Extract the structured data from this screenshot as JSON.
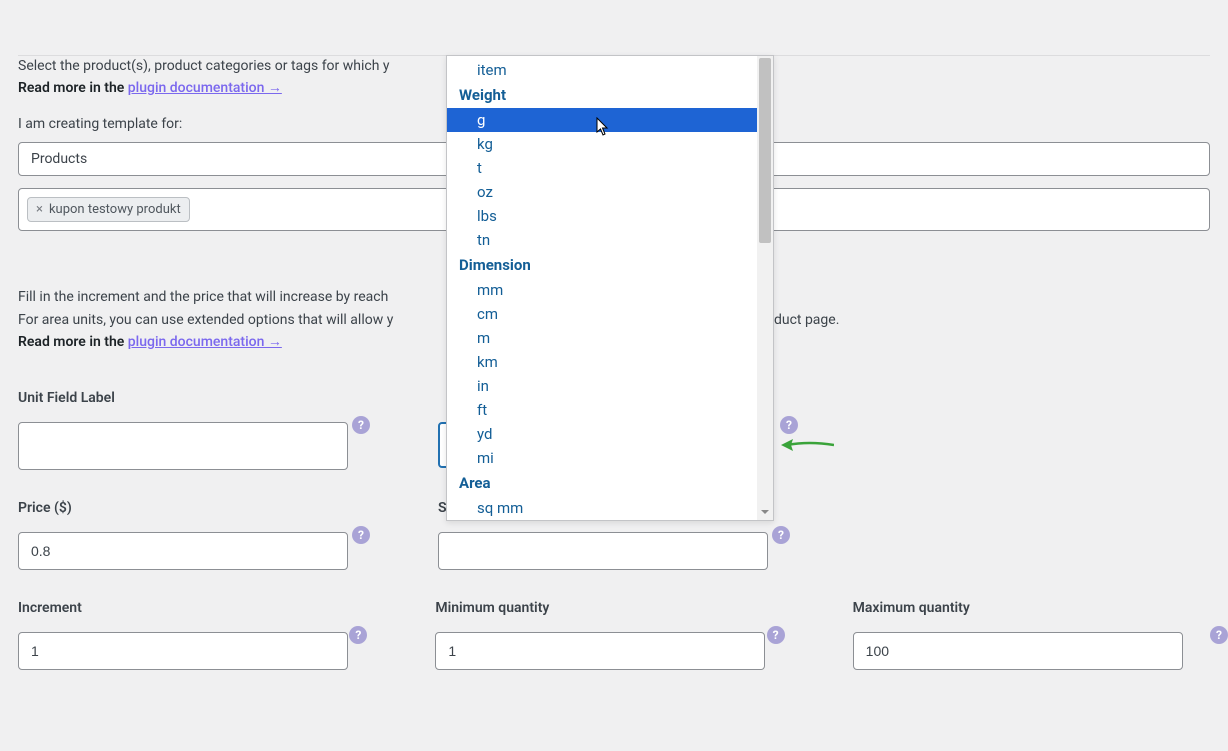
{
  "colors": {
    "page_bg": "#f0f0f1",
    "text": "#3c434a",
    "link": "#7b68ee",
    "border": "#8c8f94",
    "select_focus_border": "#2271b1",
    "dd_group": "#135e96",
    "dd_option": "#135e96",
    "dd_highlight_bg": "#1e64d4",
    "dd_highlight_text": "#ffffff",
    "help_bg": "#a9a3d6",
    "arrow": "#3aa33a",
    "chip_bg": "#eceef0",
    "chip_border": "#bbbfc3"
  },
  "intro": {
    "line1": "Select the product(s), product categories or tags for which y",
    "read_more_label": "Read more in the ",
    "doc_link_text": "plugin documentation →"
  },
  "template": {
    "label": "I am creating template for:",
    "selected": "Products"
  },
  "tags": {
    "chip": {
      "remove_symbol": "×",
      "text": "kupon testowy produkt"
    }
  },
  "increment_section": {
    "line1_visible": "Fill in the increment and the price that will increase by reach",
    "line2_left": "For area units, you can use extended options that will allow y",
    "line2_right": " the product page.",
    "read_more_label": "Read more in the ",
    "doc_link_text": "plugin documentation →"
  },
  "fields": {
    "unit_field_label": {
      "label": "Unit Field Label",
      "value": ""
    },
    "unit_select": {
      "selected": "g"
    },
    "price": {
      "label": "Price ($)",
      "value": "0.8"
    },
    "sale_price": {
      "label": "Sale price ($)",
      "value": ""
    },
    "increment": {
      "label": "Increment",
      "value": "1"
    },
    "min_qty": {
      "label": "Minimum quantity",
      "value": "1"
    },
    "max_qty": {
      "label": "Maximum quantity",
      "value": "100"
    }
  },
  "dropdown": {
    "groups": [
      {
        "label": null,
        "options": [
          {
            "text": "item",
            "highlighted": false
          }
        ]
      },
      {
        "label": "Weight",
        "options": [
          {
            "text": "g",
            "highlighted": true
          },
          {
            "text": "kg",
            "highlighted": false
          },
          {
            "text": "t",
            "highlighted": false
          },
          {
            "text": "oz",
            "highlighted": false
          },
          {
            "text": "lbs",
            "highlighted": false
          },
          {
            "text": "tn",
            "highlighted": false
          }
        ]
      },
      {
        "label": "Dimension",
        "options": [
          {
            "text": "mm",
            "highlighted": false
          },
          {
            "text": "cm",
            "highlighted": false
          },
          {
            "text": "m",
            "highlighted": false
          },
          {
            "text": "km",
            "highlighted": false
          },
          {
            "text": "in",
            "highlighted": false
          },
          {
            "text": "ft",
            "highlighted": false
          },
          {
            "text": "yd",
            "highlighted": false
          },
          {
            "text": "mi",
            "highlighted": false
          }
        ]
      },
      {
        "label": "Area",
        "options": [
          {
            "text": "sq mm",
            "highlighted": false
          }
        ]
      }
    ]
  },
  "help_glyph": "?"
}
